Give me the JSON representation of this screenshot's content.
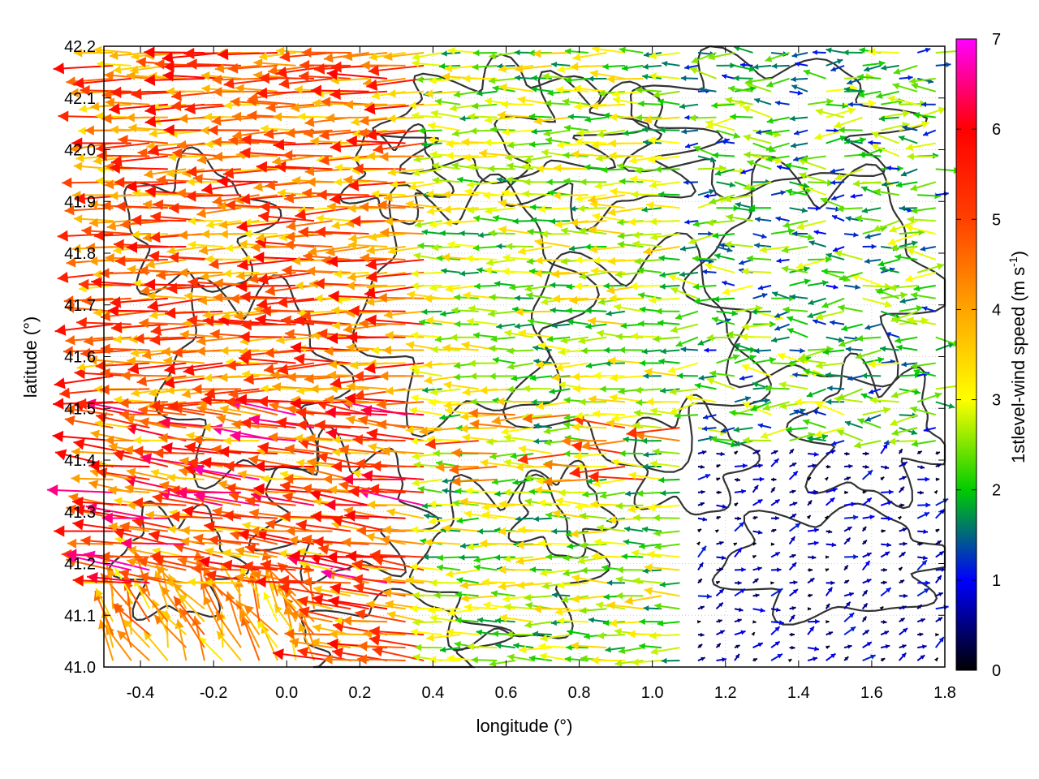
{
  "chart_data": {
    "type": "vector-field",
    "xlabel": "longitude (°)",
    "ylabel": "latitude (°)",
    "xlim": [
      -0.5,
      1.8
    ],
    "ylim": [
      41.0,
      42.2
    ],
    "xticks": [
      "-0.4",
      "-0.2",
      "0.0",
      "0.2",
      "0.4",
      "0.6",
      "0.8",
      "1.0",
      "1.2",
      "1.4",
      "1.6",
      "1.8"
    ],
    "yticks": [
      "41.0",
      "41.1",
      "41.2",
      "41.3",
      "41.4",
      "41.5",
      "41.6",
      "41.7",
      "41.8",
      "41.9",
      "42.0",
      "42.1",
      "42.2"
    ],
    "grid": true,
    "colorbar": {
      "label_main": "1stlevel-wind speed (m s",
      "label_sup": "-1",
      "label_end": ")",
      "range": [
        0,
        7
      ],
      "ticks": [
        "0",
        "1",
        "2",
        "3",
        "4",
        "5",
        "6",
        "7"
      ],
      "colors": [
        "#000000",
        "#0000ff",
        "#00cc00",
        "#ffff00",
        "#ffa500",
        "#ff4000",
        "#ff0000",
        "#ff00ff"
      ]
    },
    "wind_regions": [
      {
        "region": "west",
        "lon_range": [
          -0.5,
          0.4
        ],
        "speed_range": [
          3,
          6.5
        ],
        "direction": "westward"
      },
      {
        "region": "center",
        "lon_range": [
          0.4,
          1.1
        ],
        "speed_range": [
          1.5,
          3.5
        ],
        "direction": "westward"
      },
      {
        "region": "southeast",
        "lon_range": [
          1.1,
          1.8
        ],
        "lat_range": [
          41.0,
          41.4
        ],
        "speed_range": [
          0,
          1.5
        ],
        "direction": "northeastward"
      }
    ],
    "contour_color": "#333333"
  }
}
